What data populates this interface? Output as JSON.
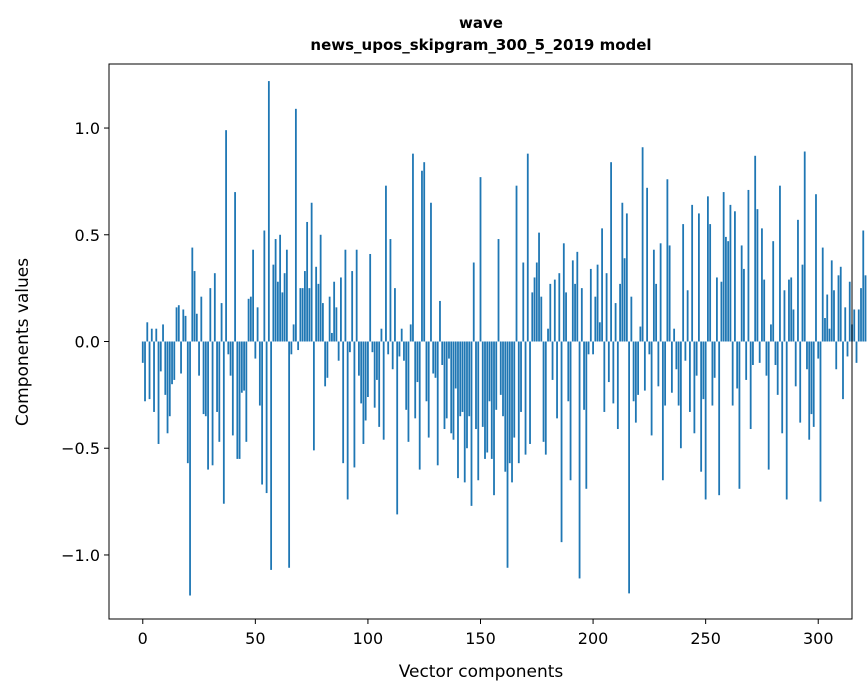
{
  "chart_data": {
    "type": "bar",
    "title_line1": "wave",
    "title_line2": "news_upos_skipgram_300_5_2019 model",
    "xlabel": "Vector components",
    "ylabel": "Components values",
    "xlim": [
      -15,
      315
    ],
    "ylim": [
      -1.3,
      1.3
    ],
    "xticks": [
      {
        "value": 0,
        "label": "0"
      },
      {
        "value": 50,
        "label": "50"
      },
      {
        "value": 100,
        "label": "100"
      },
      {
        "value": 150,
        "label": "150"
      },
      {
        "value": 200,
        "label": "200"
      },
      {
        "value": 250,
        "label": "250"
      },
      {
        "value": 300,
        "label": "300"
      }
    ],
    "yticks": [
      {
        "value": 1.0,
        "label": "1.0"
      },
      {
        "value": 0.5,
        "label": "0.5"
      },
      {
        "value": 0.0,
        "label": "0.0"
      },
      {
        "value": -0.5,
        "label": "−0.5"
      },
      {
        "value": -1.0,
        "label": "−1.0"
      }
    ],
    "bar_color": "#1f77b4",
    "grid": false,
    "values": [
      -0.1,
      -0.28,
      0.09,
      -0.27,
      0.06,
      -0.33,
      0.06,
      -0.48,
      -0.14,
      0.08,
      -0.25,
      -0.43,
      -0.35,
      -0.2,
      -0.18,
      0.16,
      0.17,
      -0.15,
      0.15,
      0.12,
      -0.57,
      -1.19,
      0.44,
      0.33,
      0.13,
      -0.16,
      0.21,
      -0.34,
      -0.35,
      -0.6,
      0.25,
      -0.58,
      0.32,
      -0.33,
      -0.47,
      0.18,
      -0.76,
      0.99,
      -0.06,
      -0.16,
      -0.44,
      0.7,
      -0.55,
      -0.55,
      -0.24,
      -0.23,
      -0.47,
      0.2,
      0.21,
      0.43,
      -0.08,
      0.16,
      -0.3,
      -0.67,
      0.52,
      -0.71,
      1.22,
      -1.07,
      0.36,
      0.48,
      0.28,
      0.5,
      0.23,
      0.32,
      0.43,
      -1.06,
      -0.06,
      0.08,
      1.09,
      -0.04,
      0.25,
      0.25,
      0.33,
      0.56,
      0.25,
      0.65,
      -0.51,
      0.35,
      0.27,
      0.5,
      0.18,
      -0.21,
      -0.17,
      0.21,
      0.04,
      0.28,
      0.16,
      -0.09,
      0.3,
      -0.57,
      0.43,
      -0.74,
      -0.05,
      0.33,
      -0.59,
      0.43,
      -0.16,
      -0.29,
      -0.48,
      -0.37,
      -0.26,
      0.41,
      -0.05,
      -0.31,
      -0.18,
      -0.4,
      0.06,
      -0.46,
      0.73,
      -0.06,
      0.48,
      -0.13,
      0.25,
      -0.81,
      -0.07,
      0.06,
      -0.09,
      -0.32,
      -0.47,
      0.08,
      0.88,
      -0.36,
      -0.19,
      -0.6,
      0.8,
      0.84,
      -0.28,
      -0.45,
      0.65,
      -0.15,
      -0.17,
      -0.58,
      0.19,
      -0.11,
      -0.41,
      -0.36,
      -0.08,
      -0.43,
      -0.46,
      -0.22,
      -0.64,
      -0.35,
      -0.33,
      -0.66,
      -0.5,
      -0.35,
      -0.77,
      0.37,
      -0.41,
      -0.65,
      0.77,
      -0.4,
      -0.55,
      -0.52,
      -0.28,
      -0.55,
      -0.72,
      -0.32,
      0.48,
      -0.25,
      -0.35,
      -0.61,
      -1.06,
      -0.57,
      -0.66,
      -0.45,
      0.73,
      -0.57,
      -0.33,
      0.37,
      -0.53,
      0.88,
      -0.48,
      0.23,
      0.3,
      0.37,
      0.51,
      0.21,
      -0.47,
      -0.53,
      0.06,
      0.27,
      -0.18,
      0.29,
      -0.36,
      0.32,
      -0.94,
      0.46,
      0.23,
      -0.28,
      -0.65,
      0.38,
      0.27,
      0.42,
      -1.11,
      0.25,
      -0.32,
      -0.69,
      -0.06,
      0.34,
      -0.06,
      0.21,
      0.36,
      0.09,
      0.53,
      -0.33,
      0.32,
      -0.19,
      0.84,
      -0.29,
      0.18,
      -0.41,
      0.27,
      0.65,
      0.39,
      0.6,
      -1.18,
      0.21,
      -0.28,
      -0.38,
      -0.25,
      0.07,
      0.91,
      -0.23,
      0.72,
      -0.06,
      -0.44,
      0.43,
      0.27,
      -0.21,
      0.46,
      -0.65,
      -0.3,
      0.76,
      0.45,
      -0.24,
      0.06,
      -0.13,
      -0.3,
      -0.5,
      0.55,
      -0.09,
      0.24,
      -0.33,
      0.64,
      -0.43,
      -0.16,
      0.6,
      -0.61,
      -0.27,
      -0.74,
      0.68,
      0.55,
      -0.3,
      -0.17,
      0.3,
      -0.72,
      0.28,
      0.7,
      0.49,
      0.47,
      0.64,
      -0.3,
      0.61,
      -0.22,
      -0.69,
      0.45,
      0.34,
      -0.18,
      0.71,
      -0.41,
      -0.11,
      0.87,
      0.62,
      -0.1,
      0.53,
      0.29,
      -0.16,
      -0.6,
      0.08,
      0.47,
      -0.11,
      -0.25,
      0.73,
      -0.43,
      0.24,
      -0.74,
      0.29,
      0.3,
      0.15,
      -0.21,
      0.57,
      -0.38,
      0.36,
      0.89,
      -0.13,
      -0.46,
      -0.34,
      -0.4,
      0.69,
      -0.08,
      -0.75,
      0.44,
      0.11,
      0.22,
      0.06,
      0.38,
      0.24,
      -0.13,
      0.31,
      0.35,
      -0.27,
      0.16,
      -0.07,
      0.28,
      0.08,
      0.15,
      -0.1,
      0.15,
      0.25,
      0.52,
      0.31
    ]
  }
}
